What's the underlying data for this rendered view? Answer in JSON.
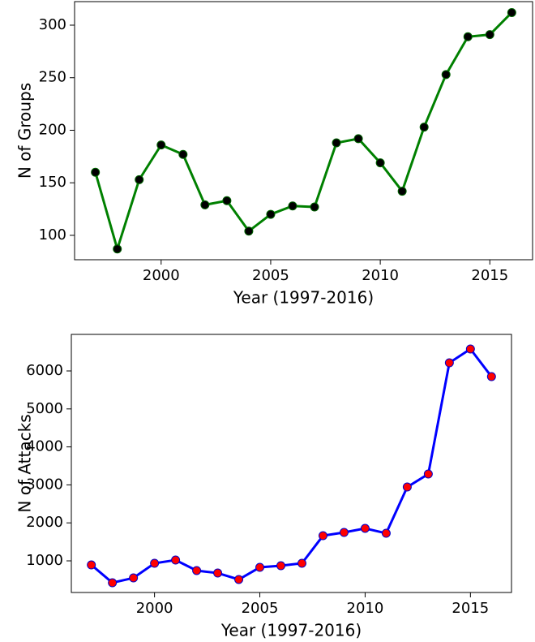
{
  "chart_data": [
    {
      "type": "line",
      "xlabel": "Year (1997-2016)",
      "ylabel": "N of Groups",
      "x": [
        1997,
        1998,
        1999,
        2000,
        2001,
        2002,
        2003,
        2004,
        2005,
        2006,
        2007,
        2008,
        2009,
        2010,
        2011,
        2012,
        2013,
        2014,
        2015,
        2016
      ],
      "series": [
        {
          "name": "N of Groups",
          "color": "#008000",
          "marker_color": "#000000",
          "marker_edge": "#006400",
          "values": [
            160,
            87,
            153,
            186,
            177,
            129,
            133,
            104,
            120,
            128,
            127,
            188,
            192,
            169,
            142,
            203,
            253,
            289,
            291,
            312
          ]
        }
      ],
      "xlim": [
        1996.05,
        2016.95
      ],
      "xticks": [
        2000,
        2005,
        2010,
        2015
      ],
      "ylim": [
        76.8,
        322.4
      ],
      "yticks": [
        100,
        150,
        200,
        250,
        300
      ],
      "grid": false,
      "legend": false
    },
    {
      "type": "line",
      "xlabel": "Year (1997-2016)",
      "ylabel": "N of Attacks",
      "x": [
        1997,
        1998,
        1999,
        2000,
        2001,
        2002,
        2003,
        2004,
        2005,
        2006,
        2007,
        2008,
        2009,
        2010,
        2011,
        2012,
        2013,
        2014,
        2015,
        2016
      ],
      "series": [
        {
          "name": "N of Attacks",
          "color": "#0000ff",
          "marker_color": "#ff0000",
          "marker_edge": "#0000cc",
          "values": [
            893,
            423,
            551,
            936,
            1021,
            744,
            679,
            509,
            829,
            872,
            936,
            1662,
            1748,
            1855,
            1726,
            2944,
            3286,
            6214,
            6577,
            5850
          ]
        }
      ],
      "xlim": [
        1996.05,
        2016.95
      ],
      "xticks": [
        2000,
        2005,
        2010,
        2015
      ],
      "ylim": [
        167,
        6962
      ],
      "yticks": [
        1000,
        2000,
        3000,
        4000,
        5000,
        6000
      ],
      "grid": false,
      "legend": false
    }
  ]
}
